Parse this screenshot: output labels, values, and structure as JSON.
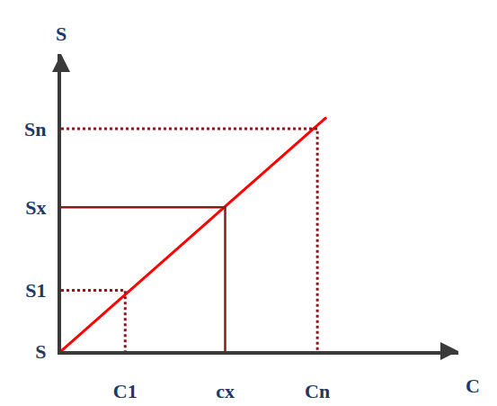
{
  "chart_data": {
    "type": "line",
    "x_label": "C",
    "y_label": "S",
    "grid": false,
    "xlim": [
      0,
      6.2
    ],
    "ylim": [
      0,
      4.65
    ],
    "xticks": [
      {
        "value": 1,
        "label": "C1"
      },
      {
        "value": 2.56,
        "label": "cx"
      },
      {
        "value": 4.0,
        "label": "Cn"
      }
    ],
    "yticks": [
      {
        "value": 0,
        "label": "S"
      },
      {
        "value": 0.95,
        "label": "S1"
      },
      {
        "value": 2.25,
        "label": "Sx"
      },
      {
        "value": 3.48,
        "label": "Sn"
      }
    ],
    "series": [
      {
        "type": "line",
        "color": "#ff0000",
        "line_style": "solid",
        "x": [
          0,
          4.14
        ],
        "values": [
          0,
          3.66
        ]
      },
      {
        "type": "line",
        "color": "#8b1a1a",
        "line_style": "dotted",
        "x": [
          0,
          1,
          1
        ],
        "values": [
          0.95,
          0.95,
          0
        ]
      },
      {
        "type": "line",
        "color": "#8b1a1a",
        "line_style": "solid",
        "x": [
          0,
          2.56,
          2.56
        ],
        "values": [
          2.25,
          2.25,
          0
        ]
      },
      {
        "type": "line",
        "color": "#8b1a1a",
        "line_style": "dotted",
        "x": [
          0,
          4.0,
          4.0
        ],
        "values": [
          3.48,
          3.48,
          0
        ]
      }
    ]
  }
}
